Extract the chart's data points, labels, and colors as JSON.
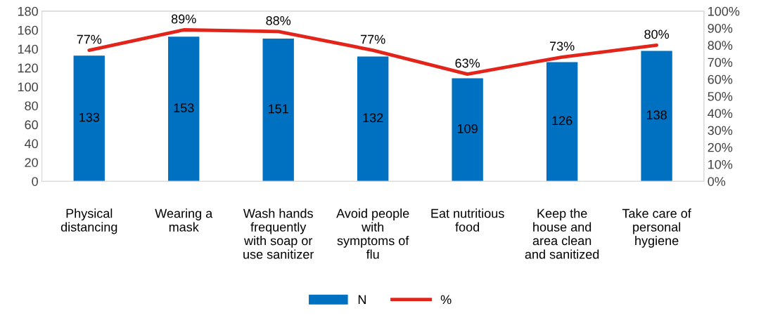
{
  "chart_data": {
    "type": "bar",
    "categories": [
      "Physical\ndistancing",
      "Wearing a\nmask",
      "Wash hands\nfrequently\nwith soap or\nuse sanitizer",
      "Avoid people\nwith\nsymptoms of\nflu",
      "Eat nutritious\nfood",
      "Keep the\nhouse and\narea clean\nand sanitized",
      "Take care of\npersonal\nhygiene"
    ],
    "series": [
      {
        "name": "N",
        "color": "#0070c0",
        "values": [
          133,
          153,
          151,
          132,
          109,
          126,
          138
        ]
      },
      {
        "name": "%",
        "type": "line",
        "axis": "y2",
        "color": "#e3241b",
        "values": [
          77,
          89,
          88,
          77,
          63,
          73,
          80
        ],
        "value_labels": [
          "77%",
          "89%",
          "88%",
          "77%",
          "63%",
          "73%",
          "80%"
        ]
      }
    ],
    "ylim": [
      0,
      180
    ],
    "yticks": [
      0,
      20,
      40,
      60,
      80,
      100,
      120,
      140,
      160,
      180
    ],
    "y2lim": [
      0,
      100
    ],
    "y2ticks": [
      {
        "value": 0,
        "label": "0%"
      },
      {
        "value": 10,
        "label": "10%"
      },
      {
        "value": 20,
        "label": "20%"
      },
      {
        "value": 30,
        "label": "30%"
      },
      {
        "value": 40,
        "label": "40%"
      },
      {
        "value": 50,
        "label": "50%"
      },
      {
        "value": 60,
        "label": "60%"
      },
      {
        "value": 70,
        "label": "70%"
      },
      {
        "value": 80,
        "label": "80%"
      },
      {
        "value": 90,
        "label": "90%"
      },
      {
        "value": 100,
        "label": "100%"
      }
    ],
    "data_labels": true,
    "legend": "bottom",
    "grid": false,
    "marker": "none",
    "line_style": "solid"
  }
}
